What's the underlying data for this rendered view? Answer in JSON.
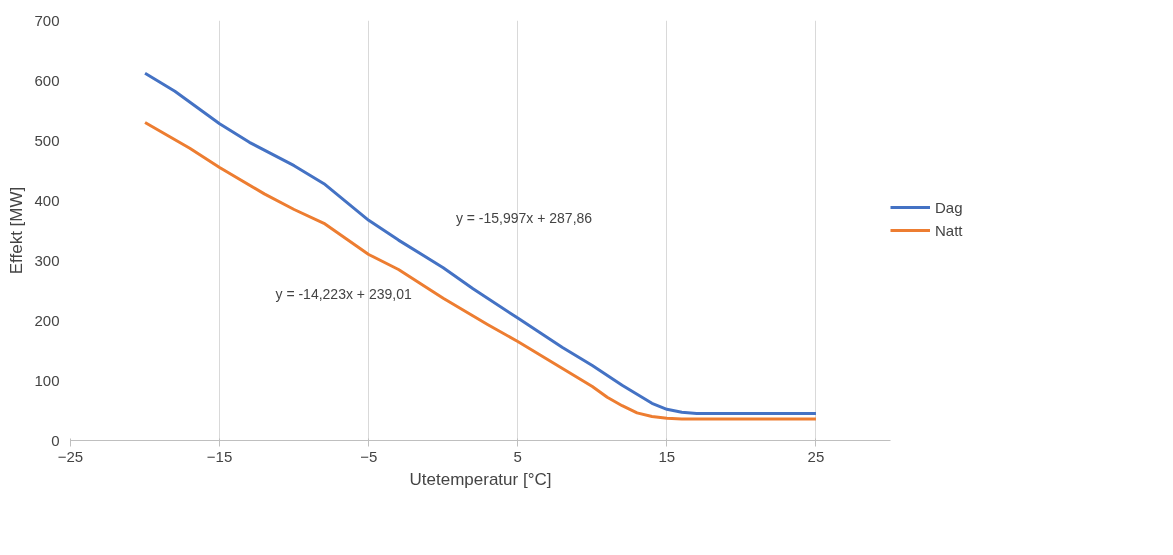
{
  "chart_data": {
    "type": "line",
    "xlabel": "Utetemperatur [°C]",
    "ylabel": "Effekt [MW]",
    "xlim": [
      -25,
      30
    ],
    "xticks": [
      -25,
      -15,
      -5,
      5,
      15,
      25
    ],
    "ylim": [
      0,
      700
    ],
    "yticks": [
      0,
      100,
      200,
      300,
      400,
      500,
      600,
      700
    ],
    "grid": "x",
    "legend": "right",
    "marker": "none",
    "line_style": "solid",
    "series": [
      {
        "name": "Dag",
        "color": "#4472c4",
        "x": [
          -20,
          -18,
          -15,
          -13,
          -10,
          -8,
          -5,
          -3,
          0,
          2,
          5,
          8,
          10,
          12,
          13,
          14,
          15,
          16,
          17,
          20,
          25
        ],
        "values": [
          612,
          582,
          528,
          497,
          458,
          428,
          367,
          334,
          288,
          253,
          204,
          155,
          125,
          92,
          77,
          62,
          52,
          47,
          45,
          45,
          45
        ]
      },
      {
        "name": "Natt",
        "color": "#ed7d31",
        "x": [
          -20,
          -17,
          -15,
          -12,
          -10,
          -8,
          -5,
          -3,
          0,
          3,
          5,
          8,
          10,
          11,
          12,
          13,
          14,
          15,
          16,
          20,
          25
        ],
        "values": [
          530,
          487,
          455,
          411,
          385,
          362,
          310,
          285,
          237,
          193,
          165,
          120,
          90,
          72,
          58,
          46,
          40,
          37,
          36,
          36,
          36
        ]
      }
    ],
    "annotations": [
      "y = -15,997x + 287,86",
      "y = -14,223x + 239,01"
    ]
  }
}
